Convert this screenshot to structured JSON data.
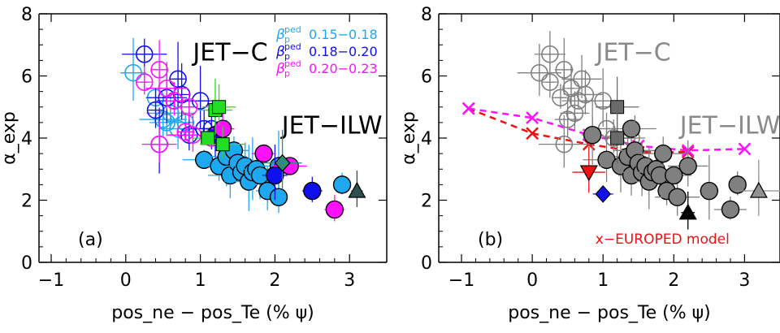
{
  "colors": {
    "beta_low": "#1ea8f0",
    "beta_mid": "#1010ee",
    "beta_high": "#ff10ff",
    "green": "#22dd22",
    "grey": "#808080",
    "model_red": "#ee1111",
    "model_magenta": "#ff10ff"
  },
  "chart_data": [
    {
      "type": "scatter",
      "panel_label": "(a)",
      "xlabel": "pos_ne − pos_Te (% ψ)",
      "ylabel": "α_exp",
      "xlim": [
        -1,
        3.5
      ],
      "ylim": [
        0,
        8
      ],
      "xticks": [
        "−1",
        "0",
        "1",
        "2",
        "3"
      ],
      "yticks": [
        "0",
        "2",
        "4",
        "6",
        "8"
      ],
      "annotations": [
        "JET−C",
        "JET−ILW"
      ],
      "legend": [
        {
          "label": "0.15−0.18",
          "color_key": "beta_low"
        },
        {
          "label": "0.18−0.20",
          "color_key": "beta_mid"
        },
        {
          "label": "0.20−0.23",
          "color_key": "beta_high"
        }
      ],
      "legend_symbol": "β_p^ped",
      "series": [
        {
          "group": "JET-C",
          "color_key": "beta_low",
          "marker": "open-circle",
          "points": [
            [
              0.1,
              6.1
            ],
            [
              0.4,
              5.3
            ],
            [
              0.5,
              4.6
            ],
            [
              0.55,
              4.5
            ],
            [
              0.6,
              4.8
            ],
            [
              0.7,
              4.3
            ],
            [
              0.8,
              4.5
            ]
          ]
        },
        {
          "group": "JET-C",
          "color_key": "beta_mid",
          "marker": "open-circle",
          "points": [
            [
              0.25,
              6.7
            ],
            [
              0.4,
              4.9
            ],
            [
              0.45,
              3.8
            ],
            [
              0.55,
              5.3
            ],
            [
              0.65,
              5.2
            ],
            [
              0.7,
              5.9
            ],
            [
              0.75,
              5.4
            ],
            [
              0.85,
              4.1
            ],
            [
              1.0,
              5.2
            ],
            [
              1.05,
              4.3
            ],
            [
              1.15,
              4.3
            ]
          ]
        },
        {
          "group": "JET-C",
          "color_key": "beta_high",
          "marker": "open-circle",
          "points": [
            [
              0.25,
              5.8
            ],
            [
              0.45,
              6.2
            ],
            [
              0.45,
              3.8
            ],
            [
              0.55,
              5.6
            ],
            [
              0.65,
              5.2
            ],
            [
              0.8,
              4.2
            ],
            [
              0.85,
              5.0
            ],
            [
              0.9,
              4.1
            ],
            [
              1.15,
              4.0
            ]
          ]
        },
        {
          "group": "JET-ILW",
          "color_key": "beta_low",
          "marker": "filled-circle",
          "points": [
            [
              1.05,
              3.3
            ],
            [
              1.25,
              3.1
            ],
            [
              1.35,
              3.4
            ],
            [
              1.4,
              2.8
            ],
            [
              1.45,
              3.6
            ],
            [
              1.5,
              3.2
            ],
            [
              1.55,
              2.9
            ],
            [
              1.6,
              3.1
            ],
            [
              1.65,
              2.6
            ],
            [
              1.7,
              2.9
            ],
            [
              1.75,
              3.0
            ],
            [
              1.8,
              2.8
            ],
            [
              1.9,
              2.3
            ],
            [
              2.05,
              3.1
            ],
            [
              2.05,
              2.1
            ],
            [
              2.9,
              2.5
            ]
          ]
        },
        {
          "group": "JET-ILW",
          "color_key": "beta_mid",
          "marker": "filled-circle",
          "points": [
            [
              1.2,
              4.1
            ],
            [
              2.0,
              2.8
            ],
            [
              2.5,
              2.3
            ]
          ]
        },
        {
          "group": "JET-ILW",
          "color_key": "beta_high",
          "marker": "filled-circle",
          "points": [
            [
              1.3,
              4.3
            ],
            [
              1.85,
              3.5
            ],
            [
              2.2,
              3.1
            ],
            [
              2.8,
              1.7
            ]
          ]
        },
        {
          "group": "green",
          "color_key": "green",
          "marker": "filled-square",
          "points": [
            [
              1.1,
              4.0
            ],
            [
              1.2,
              4.9
            ],
            [
              1.25,
              5.0
            ],
            [
              1.3,
              3.8
            ]
          ]
        },
        {
          "group": "diamond",
          "color": "#2e8b78",
          "marker": "filled-diamond",
          "points": [
            [
              2.1,
              3.2
            ]
          ]
        },
        {
          "group": "triangle",
          "color": "#2f4f4f",
          "marker": "filled-triangle-up",
          "points": [
            [
              3.1,
              2.3
            ]
          ]
        }
      ]
    },
    {
      "type": "scatter",
      "panel_label": "(b)",
      "xlabel": "pos_ne − pos_Te (% ψ)",
      "ylabel": "α_exp",
      "xlim": [
        -1,
        3.5
      ],
      "ylim": [
        0,
        8
      ],
      "xticks": [
        "−1",
        "0",
        "1",
        "2",
        "3"
      ],
      "yticks": [
        "0",
        "2",
        "4",
        "6",
        "8"
      ],
      "annotations": [
        "JET−C",
        "JET−ILW"
      ],
      "model_label": "x−EUROPED model",
      "series": [
        {
          "group": "JET-C",
          "color_key": "grey",
          "marker": "open-circle",
          "points": [
            [
              0.1,
              6.1
            ],
            [
              0.25,
              6.7
            ],
            [
              0.25,
              5.8
            ],
            [
              0.4,
              5.3
            ],
            [
              0.45,
              6.2
            ],
            [
              0.45,
              3.8
            ],
            [
              0.5,
              4.6
            ],
            [
              0.55,
              5.6
            ],
            [
              0.6,
              4.8
            ],
            [
              0.65,
              5.2
            ],
            [
              0.7,
              5.9
            ],
            [
              0.75,
              5.4
            ],
            [
              0.85,
              4.1
            ],
            [
              1.0,
              5.2
            ],
            [
              1.05,
              4.3
            ],
            [
              1.15,
              4.0
            ],
            [
              1.4,
              4.0
            ]
          ]
        },
        {
          "group": "JET-ILW",
          "color_key": "grey",
          "marker": "filled-circle",
          "points": [
            [
              0.85,
              4.1
            ],
            [
              1.05,
              3.3
            ],
            [
              1.25,
              3.1
            ],
            [
              1.35,
              3.4
            ],
            [
              1.4,
              4.3
            ],
            [
              1.4,
              2.8
            ],
            [
              1.45,
              3.6
            ],
            [
              1.5,
              3.2
            ],
            [
              1.55,
              2.9
            ],
            [
              1.6,
              3.1
            ],
            [
              1.65,
              2.6
            ],
            [
              1.7,
              2.9
            ],
            [
              1.75,
              3.0
            ],
            [
              1.8,
              2.8
            ],
            [
              1.85,
              3.5
            ],
            [
              1.9,
              2.3
            ],
            [
              2.05,
              2.1
            ],
            [
              2.0,
              2.8
            ],
            [
              2.2,
              3.1
            ],
            [
              2.5,
              2.3
            ],
            [
              2.8,
              1.7
            ],
            [
              2.9,
              2.5
            ]
          ]
        },
        {
          "group": "grey-square",
          "color": "#6a6a6a",
          "marker": "filled-square",
          "points": [
            [
              1.2,
              5.0
            ],
            [
              1.2,
              4.0
            ]
          ]
        },
        {
          "group": "red-triangle-down",
          "color": "#ee1111",
          "marker": "filled-triangle-down",
          "points": [
            [
              0.8,
              2.9
            ]
          ]
        },
        {
          "group": "blue-diamond",
          "color": "#1010ee",
          "marker": "filled-diamond",
          "points": [
            [
              1.0,
              2.2
            ]
          ]
        },
        {
          "group": "black-triangle",
          "color": "#000000",
          "marker": "filled-triangle-up",
          "points": [
            [
              2.2,
              1.6
            ]
          ]
        },
        {
          "group": "grey-triangle",
          "color": "#909090",
          "marker": "filled-triangle-up",
          "points": [
            [
              3.2,
              2.3
            ]
          ]
        }
      ],
      "model_lines": [
        {
          "color_key": "model_red",
          "dashed": true,
          "points": [
            [
              -0.9,
              4.95
            ],
            [
              0.0,
              4.15
            ],
            [
              0.8,
              3.8
            ],
            [
              1.5,
              3.55
            ],
            [
              2.2,
              3.55
            ]
          ]
        },
        {
          "color_key": "model_magenta",
          "dashed": true,
          "points": [
            [
              -0.9,
              4.95
            ],
            [
              0.0,
              4.65
            ],
            [
              0.8,
              4.1
            ],
            [
              1.5,
              3.75
            ],
            [
              2.2,
              3.6
            ],
            [
              3.0,
              3.65
            ]
          ]
        }
      ]
    }
  ]
}
